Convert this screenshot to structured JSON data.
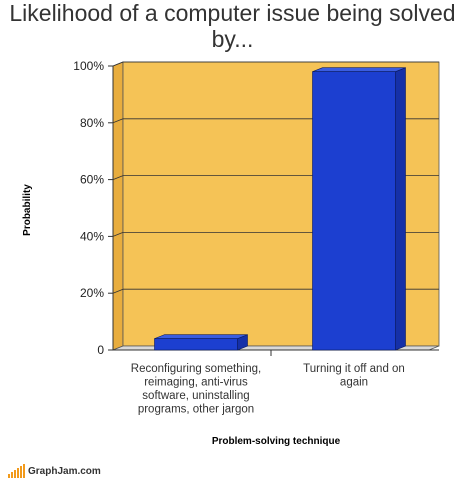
{
  "chart_data": {
    "type": "bar",
    "title": "Likelihood of a computer issue being solved by...",
    "xlabel": "Problem-solving technique",
    "ylabel": "Probability",
    "categories": [
      "Reconfiguring something, reimaging, anti-virus software, uninstalling programs, other jargon",
      "Turning it off and on again"
    ],
    "category_lines": [
      [
        "Reconfiguring something,",
        "reimaging, anti-virus",
        "software, uninstalling",
        "programs, other jargon"
      ],
      [
        "Turning it off and on",
        "again"
      ]
    ],
    "values": [
      4,
      98
    ],
    "ylim": [
      0,
      100
    ],
    "yticks": [
      "0",
      "20%",
      "40%",
      "60%",
      "80%",
      "100%"
    ],
    "grid": true,
    "legend": "none",
    "colors": {
      "plot_background": "#f5c356",
      "bar_front": "#1c3fd0",
      "bar_top": "#3a5de0",
      "bar_side": "#1530a8"
    }
  },
  "watermark": "GraphJam.com"
}
